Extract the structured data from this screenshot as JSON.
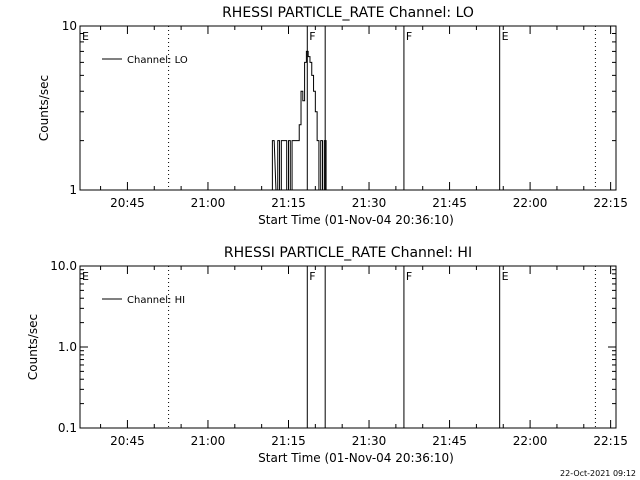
{
  "chart_data": [
    {
      "type": "line",
      "title": "RHESSI PARTICLE_RATE Channel: LO",
      "xlabel": "Start Time (01-Nov-04 20:36:10)",
      "ylabel": "Counts/sec",
      "yscale": "log",
      "ylim": [
        1,
        10
      ],
      "yticks": [
        1,
        10
      ],
      "ytick_labels": [
        "1",
        "10"
      ],
      "xlim": [
        "20:36:10",
        "22:16:00"
      ],
      "xticks": [
        "20:45",
        "21:00",
        "21:15",
        "21:30",
        "21:45",
        "22:00",
        "22:15"
      ],
      "series": [
        {
          "name": "Channel: LO",
          "color": "#000000",
          "x": [
            "21:11:40",
            "21:12:00",
            "21:12:40",
            "21:13:00",
            "21:13:20",
            "21:13:40",
            "21:14:00",
            "21:14:20",
            "21:14:40",
            "21:15:00",
            "21:15:20",
            "21:15:40",
            "21:16:00",
            "21:16:20",
            "21:16:40",
            "21:17:00",
            "21:17:20",
            "21:17:40",
            "21:18:00",
            "21:18:20",
            "21:18:40",
            "21:19:00",
            "21:19:20",
            "21:19:40",
            "21:20:00",
            "21:20:20",
            "21:20:40",
            "21:21:00",
            "21:21:20",
            "21:21:40",
            "21:22:00"
          ],
          "values": [
            1,
            2,
            1,
            2,
            1,
            2,
            2,
            2,
            1,
            2,
            1,
            2,
            2,
            2,
            2,
            2.5,
            4,
            3.5,
            6,
            7,
            6.5,
            6,
            5,
            4,
            3,
            2,
            1,
            2,
            1,
            2,
            1
          ]
        }
      ],
      "vlines_dotted": [
        "20:52:40",
        "22:12:10"
      ],
      "vlines_solid": [
        "21:18:30",
        "21:21:50",
        "21:36:30",
        "21:54:20"
      ],
      "flags": [
        {
          "label": "E",
          "x": "20:36:10"
        },
        {
          "label": "F",
          "x": "21:18:30"
        },
        {
          "label": "F",
          "x": "21:36:30"
        },
        {
          "label": "E",
          "x": "21:54:20"
        }
      ],
      "legend_position": "top-left",
      "grid": false
    },
    {
      "type": "line",
      "title": "RHESSI PARTICLE_RATE Channel: HI",
      "xlabel": "Start Time (01-Nov-04 20:36:10)",
      "ylabel": "Counts/sec",
      "yscale": "log",
      "ylim": [
        0.1,
        10
      ],
      "yticks": [
        0.1,
        1,
        10
      ],
      "ytick_labels": [
        "0.1",
        "1.0",
        "10.0"
      ],
      "xlim": [
        "20:36:10",
        "22:16:00"
      ],
      "xticks": [
        "20:45",
        "21:00",
        "21:15",
        "21:30",
        "21:45",
        "22:00",
        "22:15"
      ],
      "series": [
        {
          "name": "Channel: HI",
          "color": "#000000",
          "x": [],
          "values": []
        }
      ],
      "vlines_dotted": [
        "20:52:40",
        "22:12:10"
      ],
      "vlines_solid": [
        "21:18:30",
        "21:21:50",
        "21:36:30",
        "21:54:20"
      ],
      "flags": [
        {
          "label": "E",
          "x": "20:36:10"
        },
        {
          "label": "F",
          "x": "21:18:30"
        },
        {
          "label": "F",
          "x": "21:36:30"
        },
        {
          "label": "E",
          "x": "21:54:20"
        }
      ],
      "legend_position": "top-left",
      "grid": false
    }
  ],
  "footer": {
    "timestamp": "22-Oct-2021 09:12"
  }
}
